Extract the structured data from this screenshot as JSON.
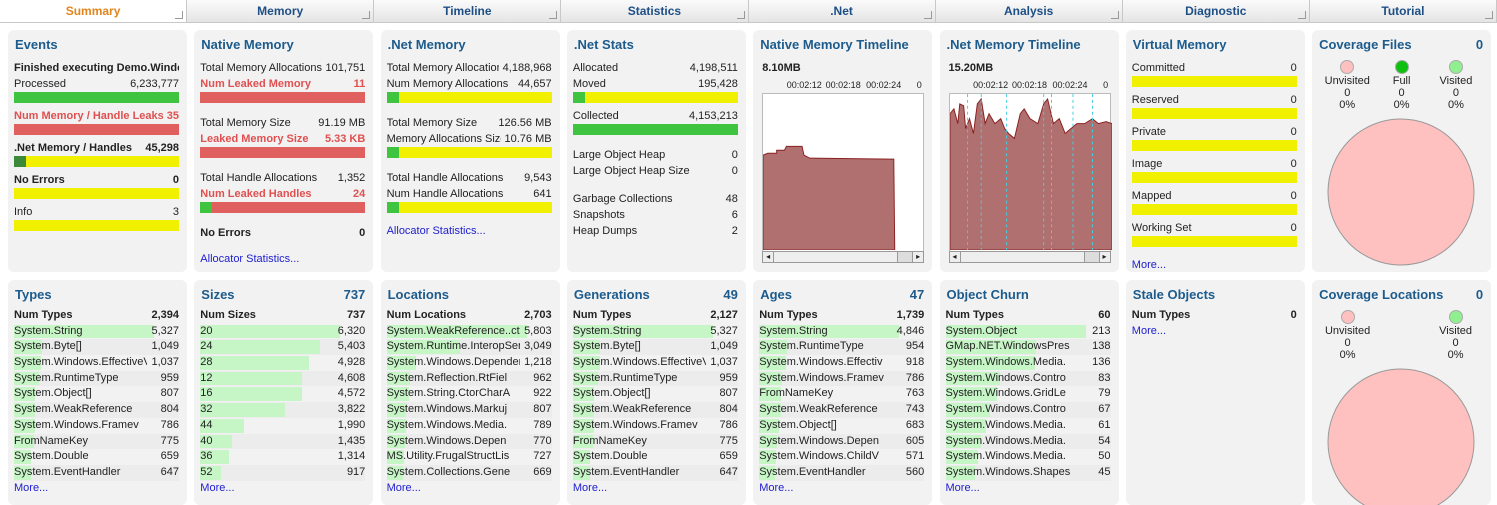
{
  "tabs": [
    "Summary",
    "Memory",
    "Timeline",
    "Statistics",
    ".Net",
    "Analysis",
    "Diagnostic",
    "Tutorial"
  ],
  "active_tab": 0,
  "summary_panels": [
    {
      "kind": "stats",
      "title": "Events",
      "groups": [
        [
          {
            "label": "Finished executing Demo.Window",
            "style": "bold"
          },
          {
            "label": "Processed",
            "value": "6,233,777",
            "bar": "#3ec43e"
          },
          {
            "label": "Num Memory / Handle Leaks",
            "value": "35",
            "bar": "#e06060",
            "style": "red"
          },
          {
            "label": ".Net Memory / Handles",
            "value": "45,298",
            "bar": "#f0f000",
            "accent": "#3a8a3a",
            "style": "bold"
          },
          {
            "label": "No Errors",
            "value": "0",
            "bar": "#f0f000",
            "style": "bold"
          },
          {
            "label": "Info",
            "value": "3",
            "bar": "#f0f000"
          }
        ]
      ]
    },
    {
      "kind": "stats",
      "title": "Native Memory",
      "groups": [
        [
          {
            "label": "Total Memory Allocations",
            "value": "101,751"
          },
          {
            "label": "Num Leaked Memory",
            "value": "11",
            "bar": "#e06060",
            "style": "red"
          }
        ],
        [
          {
            "label": "Total Memory Size",
            "value": "91.19 MB"
          },
          {
            "label": "Leaked Memory Size",
            "value": "5.33 KB",
            "bar": "#e06060",
            "style": "red"
          }
        ],
        [
          {
            "label": "Total Handle Allocations",
            "value": "1,352"
          },
          {
            "label": "Num Leaked Handles",
            "value": "24",
            "bar": "#e06060",
            "accent": "#3ec43e",
            "style": "red"
          }
        ],
        [
          {
            "label": "No Errors",
            "value": "0",
            "style": "bold"
          }
        ]
      ],
      "link": "Allocator Statistics..."
    },
    {
      "kind": "stats",
      "title": ".Net Memory",
      "groups": [
        [
          {
            "label": "Total Memory Allocation",
            "value": "4,188,968"
          },
          {
            "label": "Num Memory Allocations",
            "value": "44,657",
            "bar": "#f0f000",
            "accent": "#3ec43e"
          }
        ],
        [
          {
            "label": "Total Memory Size",
            "value": "126.56 MB"
          },
          {
            "label": "Memory Allocations Size",
            "value": "10.76 MB",
            "bar": "#f0f000",
            "accent": "#3ec43e"
          }
        ],
        [
          {
            "label": "Total Handle Allocations",
            "value": "9,543"
          },
          {
            "label": "Num Handle Allocations",
            "value": "641",
            "bar": "#f0f000",
            "accent": "#3ec43e"
          }
        ]
      ],
      "link": "Allocator Statistics..."
    },
    {
      "kind": "stats",
      "title": ".Net Stats",
      "groups": [
        [
          {
            "label": "Allocated",
            "value": "4,198,511"
          },
          {
            "label": "Moved",
            "value": "195,428",
            "bar": "#f0f000",
            "accent": "#3ec43e"
          },
          {
            "label": "Collected",
            "value": "4,153,213",
            "bar": "#3ec43e"
          }
        ],
        [
          {
            "label": "Large Object Heap",
            "value": "0"
          },
          {
            "label": "Large Object Heap Size",
            "value": "0"
          }
        ],
        [
          {
            "label": "Garbage Collections",
            "value": "48"
          },
          {
            "label": "Snapshots",
            "value": "6"
          },
          {
            "label": "Heap Dumps",
            "value": "2"
          }
        ]
      ]
    },
    {
      "kind": "timeline",
      "title": "Native Memory Timeline",
      "scale": "8.10MB",
      "times": [
        "00:02:12",
        "00:02:18",
        "00:02:24",
        "0"
      ],
      "style": "flat"
    },
    {
      "kind": "timeline",
      "title": ".Net Memory Timeline",
      "scale": "15.20MB",
      "times": [
        "00:02:12",
        "00:02:18",
        "00:02:24",
        "0"
      ],
      "style": "spiky"
    },
    {
      "kind": "stats",
      "title": "Virtual Memory",
      "groups": [
        [
          {
            "label": "Committed",
            "value": "0",
            "bar": "#f0f000"
          },
          {
            "label": "Reserved",
            "value": "0",
            "bar": "#f0f000"
          },
          {
            "label": "Private",
            "value": "0",
            "bar": "#f0f000"
          },
          {
            "label": "Image",
            "value": "0",
            "bar": "#f0f000"
          },
          {
            "label": "Mapped",
            "value": "0",
            "bar": "#f0f000"
          },
          {
            "label": "Working Set",
            "value": "0",
            "bar": "#f0f000"
          }
        ]
      ],
      "link": "More..."
    },
    {
      "kind": "coverage",
      "title": "Coverage Files",
      "total": "0",
      "legend": [
        {
          "name": "Unvisited",
          "count": "0",
          "pct": "0%",
          "color": "#ffc0c0"
        },
        {
          "name": "Full",
          "count": "0",
          "pct": "0%",
          "color": "#10c010"
        },
        {
          "name": "Visited",
          "count": "0",
          "pct": "0%",
          "color": "#90f090"
        }
      ]
    }
  ],
  "detail_panels": [
    {
      "kind": "table",
      "title": "Types",
      "header": [
        "Num Types",
        "2,394"
      ],
      "rows": [
        [
          "System.String",
          "5,327"
        ],
        [
          "System.Byte[]",
          "1,049"
        ],
        [
          "System.Windows.EffectiveV",
          "1,037"
        ],
        [
          "System.RuntimeType",
          "959"
        ],
        [
          "System.Object[]",
          "807"
        ],
        [
          "System.WeakReference",
          "804"
        ],
        [
          "System.Windows.Framev",
          "786"
        ],
        [
          "FromNameKey",
          "775"
        ],
        [
          "System.Double",
          "659"
        ],
        [
          "System.EventHandler",
          "647"
        ]
      ],
      "link": "More..."
    },
    {
      "kind": "table",
      "title": "Sizes",
      "total": "737",
      "header": [
        "Num Sizes",
        "737"
      ],
      "rows": [
        [
          "20",
          "6,320"
        ],
        [
          "24",
          "5,403"
        ],
        [
          "28",
          "4,928"
        ],
        [
          "12",
          "4,608"
        ],
        [
          "16",
          "4,572"
        ],
        [
          "32",
          "3,822"
        ],
        [
          "44",
          "1,990"
        ],
        [
          "40",
          "1,435"
        ],
        [
          "36",
          "1,314"
        ],
        [
          "52",
          "917"
        ]
      ],
      "link": "More..."
    },
    {
      "kind": "table",
      "title": "Locations",
      "header": [
        "Num Locations",
        "2,703"
      ],
      "rows": [
        [
          "System.WeakReference..ctc",
          "5,803"
        ],
        [
          "System.Runtime.InteropServ",
          "3,049"
        ],
        [
          "System.Windows.Dependen",
          "1,218"
        ],
        [
          "System.Reflection.RtFiel",
          "962"
        ],
        [
          "System.String.CtorCharA",
          "922"
        ],
        [
          "System.Windows.Markuj",
          "807"
        ],
        [
          "System.Windows.Media.",
          "789"
        ],
        [
          "System.Windows.Depen",
          "770"
        ],
        [
          "MS.Utility.FrugalStructLis",
          "727"
        ],
        [
          "System.Collections.Gene",
          "669"
        ]
      ],
      "link": "More..."
    },
    {
      "kind": "table",
      "title": "Generations",
      "total": "49",
      "header": [
        "Num Types",
        "2,127"
      ],
      "rows": [
        [
          "System.String",
          "5,327"
        ],
        [
          "System.Byte[]",
          "1,049"
        ],
        [
          "System.Windows.EffectiveV",
          "1,037"
        ],
        [
          "System.RuntimeType",
          "959"
        ],
        [
          "System.Object[]",
          "807"
        ],
        [
          "System.WeakReference",
          "804"
        ],
        [
          "System.Windows.Framev",
          "786"
        ],
        [
          "FromNameKey",
          "775"
        ],
        [
          "System.Double",
          "659"
        ],
        [
          "System.EventHandler",
          "647"
        ]
      ],
      "link": "More..."
    },
    {
      "kind": "table",
      "title": "Ages",
      "total": "47",
      "header": [
        "Num Types",
        "1,739"
      ],
      "rows": [
        [
          "System.String",
          "4,846"
        ],
        [
          "System.RuntimeType",
          "954"
        ],
        [
          "System.Windows.Effectiv",
          "918"
        ],
        [
          "System.Windows.Framev",
          "786"
        ],
        [
          "FromNameKey",
          "763"
        ],
        [
          "System.WeakReference",
          "743"
        ],
        [
          "System.Object[]",
          "683"
        ],
        [
          "System.Windows.Depen",
          "605"
        ],
        [
          "System.Windows.ChildV",
          "571"
        ],
        [
          "System.EventHandler",
          "560"
        ]
      ],
      "link": "More..."
    },
    {
      "kind": "table",
      "title": "Object Churn",
      "header": [
        "Num Types",
        "60"
      ],
      "rows": [
        [
          "System.Object",
          "213"
        ],
        [
          "GMap.NET.WindowsPres",
          "138"
        ],
        [
          "System.Windows.Media.",
          "136"
        ],
        [
          "System.Windows.Contro",
          "83"
        ],
        [
          "System.Windows.GridLe",
          "79"
        ],
        [
          "System.Windows.Contro",
          "67"
        ],
        [
          "System.Windows.Media.",
          "61"
        ],
        [
          "System.Windows.Media.",
          "54"
        ],
        [
          "System.Windows.Media.",
          "50"
        ],
        [
          "System.Windows.Shapes",
          "45"
        ]
      ],
      "link": "More..."
    },
    {
      "kind": "table",
      "title": "Stale Objects",
      "header": [
        "Num Types",
        "0"
      ],
      "rows": [],
      "link": "More..."
    },
    {
      "kind": "coverage",
      "title": "Coverage Locations",
      "total": "0",
      "legend": [
        {
          "name": "Unvisited",
          "count": "0",
          "pct": "0%",
          "color": "#ffc0c0"
        },
        {
          "name": "Visited",
          "count": "0",
          "pct": "0%",
          "color": "#90f090"
        }
      ]
    }
  ]
}
